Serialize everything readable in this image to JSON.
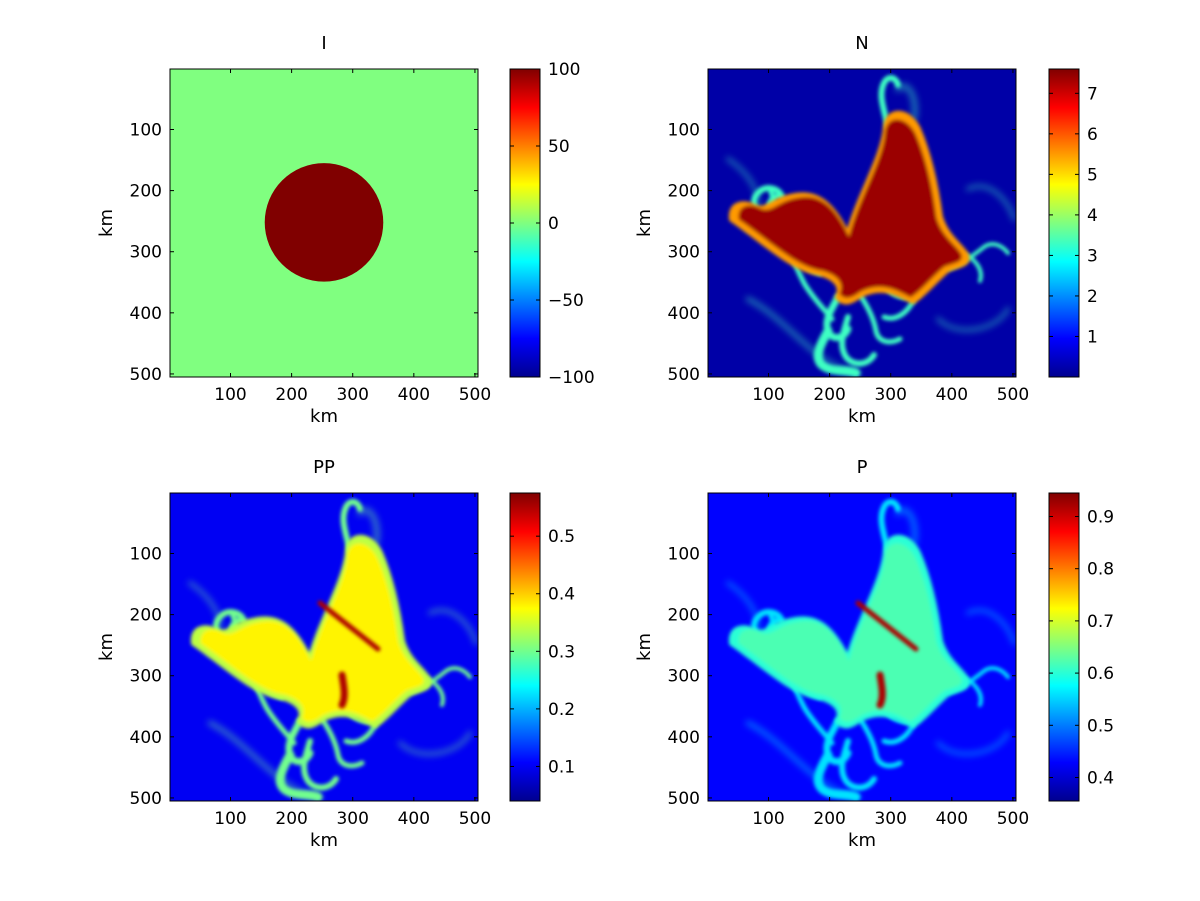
{
  "colormap": "jet",
  "colors": {
    "jet_stops": [
      "#00008f",
      "#0000ff",
      "#00ffff",
      "#ffff00",
      "#ff0000",
      "#800000"
    ]
  },
  "chart_data": [
    {
      "type": "heatmap",
      "title": "I",
      "xlabel": "km",
      "ylabel": "km",
      "xlim": [
        1,
        505
      ],
      "ylim": [
        1,
        505
      ],
      "x_ticks": [
        "100",
        "200",
        "300",
        "400",
        "500"
      ],
      "y_ticks": [
        "100",
        "200",
        "300",
        "400",
        "500"
      ],
      "y_reversed": true,
      "clim": [
        -100,
        100
      ],
      "colorbar_ticks": [
        {
          "value": -100,
          "label": "−100"
        },
        {
          "value": -50,
          "label": "−50"
        },
        {
          "value": 0,
          "label": "0"
        },
        {
          "value": 50,
          "label": "50"
        },
        {
          "value": 100,
          "label": "100"
        }
      ],
      "field": {
        "background_value": 0,
        "disk": {
          "center_km": [
            253,
            252
          ],
          "radius_km": 97,
          "value": 100
        }
      }
    },
    {
      "type": "heatmap",
      "title": "N",
      "xlabel": "km",
      "ylabel": "km",
      "xlim": [
        1,
        505
      ],
      "ylim": [
        1,
        505
      ],
      "x_ticks": [
        "100",
        "200",
        "300",
        "400",
        "500"
      ],
      "y_ticks": [
        "100",
        "200",
        "300",
        "400",
        "500"
      ],
      "y_reversed": true,
      "clim": [
        0.0,
        7.6
      ],
      "colorbar_ticks": [
        {
          "value": 1,
          "label": "1"
        },
        {
          "value": 2,
          "label": "2"
        },
        {
          "value": 3,
          "label": "3"
        },
        {
          "value": 4,
          "label": "4"
        },
        {
          "value": 5,
          "label": "5"
        },
        {
          "value": 6,
          "label": "6"
        },
        {
          "value": 7,
          "label": "7"
        }
      ],
      "field": {
        "background_value": 0.2,
        "body_value": 7.4,
        "edge_value": 5.5,
        "filament_value": 3.3
      }
    },
    {
      "type": "heatmap",
      "title": "PP",
      "xlabel": "km",
      "ylabel": "km",
      "xlim": [
        1,
        505
      ],
      "ylim": [
        1,
        505
      ],
      "x_ticks": [
        "100",
        "200",
        "300",
        "400",
        "500"
      ],
      "y_ticks": [
        "100",
        "200",
        "300",
        "400",
        "500"
      ],
      "y_reversed": true,
      "clim": [
        0.04,
        0.575
      ],
      "colorbar_ticks": [
        {
          "value": 0.1,
          "label": "0.1"
        },
        {
          "value": 0.2,
          "label": "0.2"
        },
        {
          "value": 0.3,
          "label": "0.3"
        },
        {
          "value": 0.4,
          "label": "0.4"
        },
        {
          "value": 0.5,
          "label": "0.5"
        }
      ],
      "field": {
        "background_value": 0.1,
        "body_value": 0.38,
        "edge_value": 0.34,
        "filament_value": 0.3,
        "streak_value": 0.55
      }
    },
    {
      "type": "heatmap",
      "title": "P",
      "xlabel": "km",
      "ylabel": "km",
      "xlim": [
        1,
        505
      ],
      "ylim": [
        1,
        505
      ],
      "x_ticks": [
        "100",
        "200",
        "300",
        "400",
        "500"
      ],
      "y_ticks": [
        "100",
        "200",
        "300",
        "400",
        "500"
      ],
      "y_reversed": true,
      "clim": [
        0.355,
        0.945
      ],
      "colorbar_ticks": [
        {
          "value": 0.4,
          "label": "0.4"
        },
        {
          "value": 0.5,
          "label": "0.5"
        },
        {
          "value": 0.6,
          "label": "0.6"
        },
        {
          "value": 0.7,
          "label": "0.7"
        },
        {
          "value": 0.8,
          "label": "0.8"
        },
        {
          "value": 0.9,
          "label": "0.9"
        }
      ],
      "field": {
        "background_value": 0.43,
        "body_value": 0.62,
        "edge_value": 0.6,
        "filament_value": 0.56,
        "streak_value": 0.92
      }
    }
  ]
}
